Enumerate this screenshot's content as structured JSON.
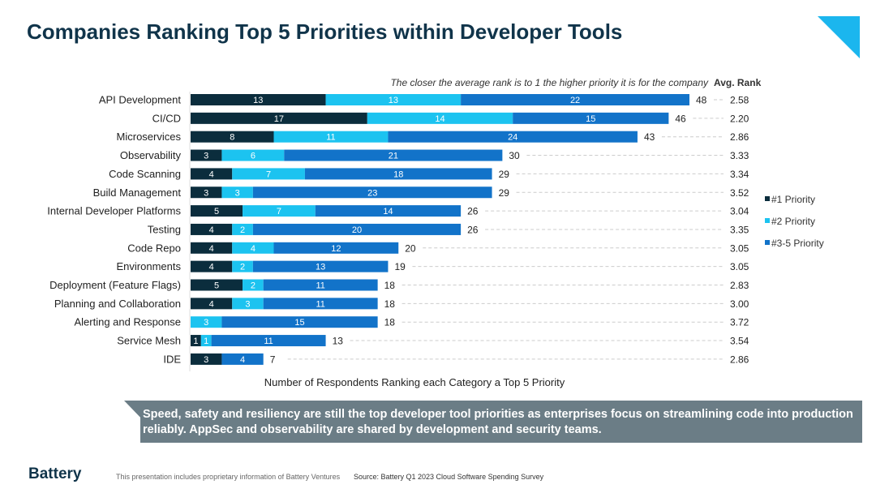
{
  "title": "Companies Ranking Top 5 Priorities within Developer Tools",
  "banner": "Speed, safety and resiliency are still the top developer tool priorities as enterprises focus on streamlining code into production reliably. AppSec and observability are shared by development and security teams.",
  "footer": {
    "logo": "Battery",
    "note": "This presentation includes proprietary information of Battery Ventures",
    "source": "Source: Battery Q1 2023 Cloud Software Spending Survey"
  },
  "chart_data": {
    "type": "bar",
    "stacked": true,
    "orientation": "horizontal",
    "subtitle": "The closer the average rank is to 1 the higher priority it is for the company",
    "avg_header": "Avg. Rank",
    "xlabel": "Number of Respondents Ranking each Category a Top 5 Priority",
    "legend_position": "right",
    "colors": [
      "#0b2d3d",
      "#1cc3f0",
      "#1273c9"
    ],
    "categories": [
      "API Development",
      "CI/CD",
      "Microservices",
      "Observability",
      "Code Scanning",
      "Build Management",
      "Internal Developer Platforms",
      "Testing",
      "Code Repo",
      "Environments",
      "Deployment (Feature Flags)",
      "Planning and Collaboration",
      "Alerting and Response",
      "Service Mesh",
      "IDE"
    ],
    "series": [
      {
        "name": "#1 Priority",
        "values": [
          13,
          17,
          8,
          3,
          4,
          3,
          5,
          4,
          4,
          4,
          5,
          4,
          0,
          1,
          3
        ]
      },
      {
        "name": "#2 Priority",
        "values": [
          13,
          14,
          11,
          6,
          7,
          3,
          7,
          2,
          4,
          2,
          2,
          3,
          3,
          1,
          0
        ]
      },
      {
        "name": "#3-5 Priority",
        "values": [
          22,
          15,
          24,
          21,
          18,
          23,
          14,
          20,
          12,
          13,
          11,
          11,
          15,
          11,
          4
        ]
      }
    ],
    "totals": [
      48,
      46,
      43,
      30,
      29,
      29,
      26,
      26,
      20,
      19,
      18,
      18,
      18,
      13,
      7
    ],
    "avg_rank": [
      "2.58",
      "2.20",
      "2.86",
      "3.33",
      "3.34",
      "3.52",
      "3.04",
      "3.35",
      "3.05",
      "3.05",
      "2.83",
      "3.00",
      "3.72",
      "3.54",
      "2.86"
    ]
  }
}
